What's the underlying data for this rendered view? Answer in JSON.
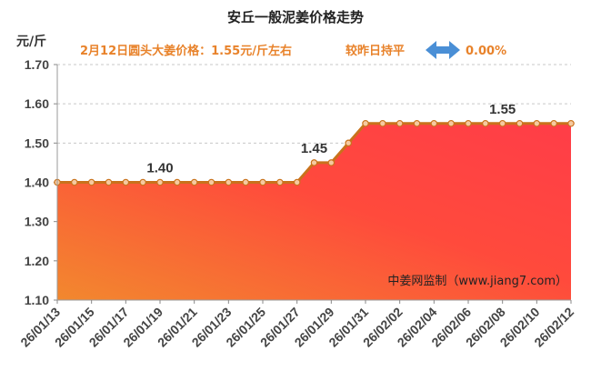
{
  "header": {
    "title": "安丘一般泥姜价格走势",
    "price_text": "2月12日圆头大姜价格：1.55元/斤左右",
    "compare_text": "较昨日持平",
    "change_text": "0.00%",
    "unit": "元/斤"
  },
  "watermark": "中姜网监制（www.jiang7.com）",
  "colors": {
    "accent": "#e8822a",
    "line": "#c9721c",
    "marker_fill": "#f6c9a0",
    "area_top": "#ff3d48",
    "area_bottom": "#f2882e",
    "arrow": "#4a8fd6"
  },
  "chart_data": {
    "type": "area",
    "x": [
      "26/01/13",
      "26/01/14",
      "26/01/15",
      "26/01/16",
      "26/01/17",
      "26/01/18",
      "26/01/19",
      "26/01/20",
      "26/01/21",
      "26/01/22",
      "26/01/23",
      "26/01/24",
      "26/01/25",
      "26/01/26",
      "26/01/27",
      "26/01/28",
      "26/01/29",
      "26/01/30",
      "26/01/31",
      "26/02/01",
      "26/02/02",
      "26/02/03",
      "26/02/04",
      "26/02/05",
      "26/02/06",
      "26/02/07",
      "26/02/08",
      "26/02/09",
      "26/02/10",
      "26/02/11",
      "26/02/12"
    ],
    "values": [
      1.4,
      1.4,
      1.4,
      1.4,
      1.4,
      1.4,
      1.4,
      1.4,
      1.4,
      1.4,
      1.4,
      1.4,
      1.4,
      1.4,
      1.4,
      1.45,
      1.45,
      1.5,
      1.55,
      1.55,
      1.55,
      1.55,
      1.55,
      1.55,
      1.55,
      1.55,
      1.55,
      1.55,
      1.55,
      1.55,
      1.55
    ],
    "x_tick_labels": [
      "26/01/13",
      "26/01/15",
      "26/01/17",
      "26/01/19",
      "26/01/21",
      "26/01/23",
      "26/01/25",
      "26/01/27",
      "26/01/29",
      "26/01/31",
      "26/02/02",
      "26/02/04",
      "26/02/06",
      "26/02/08",
      "26/02/10",
      "26/02/12"
    ],
    "y_ticks": [
      "1.10",
      "1.20",
      "1.30",
      "1.40",
      "1.50",
      "1.60",
      "1.70"
    ],
    "ylim": [
      1.1,
      1.7
    ],
    "data_labels": [
      {
        "index": 6,
        "text": "1.40"
      },
      {
        "index": 15,
        "text": "1.45"
      },
      {
        "index": 26,
        "text": "1.55"
      }
    ],
    "grid": true,
    "ylabel": "元/斤"
  }
}
